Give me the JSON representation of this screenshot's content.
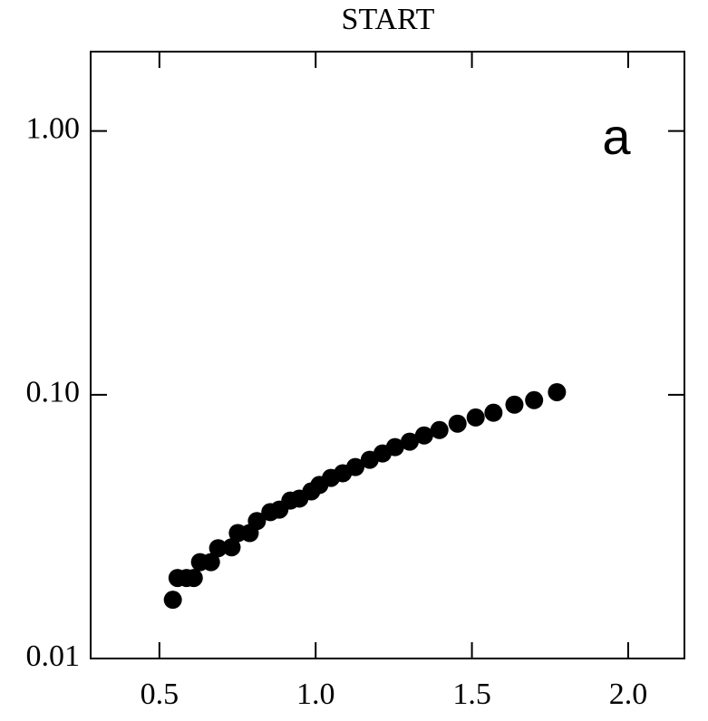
{
  "chart_data": {
    "type": "scatter",
    "title": "START",
    "annotation": "a",
    "x": [
      0.543,
      0.558,
      0.587,
      0.61,
      0.63,
      0.665,
      0.688,
      0.731,
      0.751,
      0.789,
      0.812,
      0.855,
      0.884,
      0.919,
      0.948,
      0.986,
      1.012,
      1.049,
      1.087,
      1.127,
      1.173,
      1.214,
      1.254,
      1.301,
      1.347,
      1.396,
      1.454,
      1.512,
      1.569,
      1.636,
      1.699,
      1.772
    ],
    "values": [
      0.0167,
      0.0202,
      0.0202,
      0.0202,
      0.0232,
      0.0232,
      0.0262,
      0.0264,
      0.0299,
      0.0299,
      0.0332,
      0.0359,
      0.0367,
      0.0397,
      0.0404,
      0.043,
      0.0455,
      0.0484,
      0.0504,
      0.0532,
      0.0567,
      0.0599,
      0.0633,
      0.0664,
      0.0701,
      0.0735,
      0.0777,
      0.082,
      0.0855,
      0.0917,
      0.0954,
      0.1023
    ],
    "color": "#000000",
    "xlim": [
      0.28,
      2.18
    ],
    "xticks": [
      0.5,
      {
        "value": 1,
        "label": "1.0"
      },
      1.5,
      {
        "value": 2,
        "label": "2.0"
      }
    ],
    "ylim": [
      0.01,
      2
    ],
    "yticks": [
      {
        "value": 0.01,
        "label": "0.01"
      },
      {
        "value": 0.1,
        "label": "0.10"
      },
      {
        "value": 1,
        "label": "1.00"
      }
    ],
    "log_y": true
  }
}
